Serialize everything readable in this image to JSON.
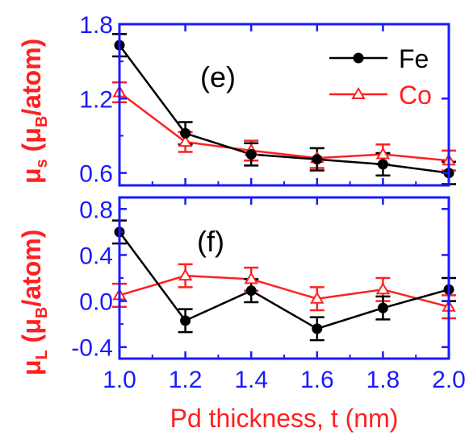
{
  "colors": {
    "axis": "#1a1aff",
    "fe": "#000000",
    "co": "#ff2020",
    "xlabel": "#ff2020",
    "ylabel_top": "#ff2020",
    "ylabel_bottom": "#ff2020"
  },
  "chart_data": [
    {
      "type": "line",
      "panel_label": "(e)",
      "ylabel": "μs (μB/atom)",
      "ylabel_parts": {
        "sym": "μ",
        "sub": "s",
        "open": " (",
        "unit_sym": "μ",
        "unit_sub": "B",
        "close": "/atom)"
      },
      "x": [
        1.0,
        1.2,
        1.4,
        1.6,
        1.8,
        2.0
      ],
      "xlim": [
        1.0,
        2.0
      ],
      "ylim": [
        0.5,
        1.8
      ],
      "yticks": [
        "0.6",
        "1.2",
        "1.8"
      ],
      "ytick_values": [
        0.6,
        1.2,
        1.8
      ],
      "legend_position": "top-right",
      "series": [
        {
          "name": "Fe",
          "marker": "filled-circle",
          "values": [
            1.63,
            0.92,
            0.75,
            0.71,
            0.67,
            0.6
          ],
          "errors": [
            0.09,
            0.09,
            0.09,
            0.09,
            0.09,
            0.09
          ]
        },
        {
          "name": "Co",
          "marker": "open-triangle",
          "values": [
            1.25,
            0.85,
            0.78,
            0.72,
            0.75,
            0.7
          ],
          "errors": [
            0.08,
            0.08,
            0.08,
            0.08,
            0.08,
            0.08
          ]
        }
      ]
    },
    {
      "type": "line",
      "panel_label": "(f)",
      "ylabel": "μL (μB/atom)",
      "ylabel_parts": {
        "sym": "μ",
        "sub": "L",
        "open": " (",
        "unit_sym": "μ",
        "unit_sub": "B",
        "close": "/atom)"
      },
      "x": [
        1.0,
        1.2,
        1.4,
        1.6,
        1.8,
        2.0
      ],
      "xlim": [
        1.0,
        2.0
      ],
      "xticks": [
        "1.0",
        "1.2",
        "1.4",
        "1.6",
        "1.8",
        "2.0"
      ],
      "xlabel": "Pd thickness, t (nm)",
      "ylim": [
        -0.5,
        0.9
      ],
      "yticks": [
        "-0.4",
        "0.0",
        "0.4",
        "0.8"
      ],
      "ytick_values": [
        -0.4,
        0.0,
        0.4,
        0.8
      ],
      "series": [
        {
          "name": "Fe",
          "marker": "filled-circle",
          "values": [
            0.6,
            -0.17,
            0.09,
            -0.24,
            -0.06,
            0.1
          ],
          "errors": [
            0.1,
            0.1,
            0.1,
            0.1,
            0.1,
            0.1
          ]
        },
        {
          "name": "Co",
          "marker": "open-triangle",
          "values": [
            0.05,
            0.22,
            0.19,
            0.02,
            0.1,
            -0.05
          ],
          "errors": [
            0.1,
            0.1,
            0.1,
            0.1,
            0.1,
            0.1
          ]
        }
      ]
    }
  ]
}
